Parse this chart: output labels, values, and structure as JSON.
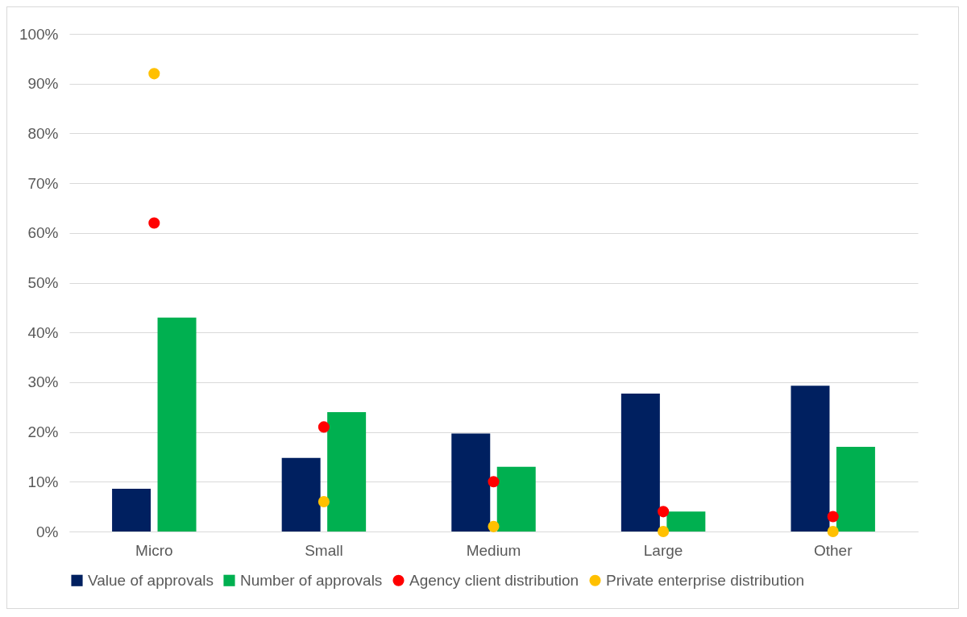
{
  "chart_data": {
    "type": "bar",
    "categories": [
      "Micro",
      "Small",
      "Medium",
      "Large",
      "Other"
    ],
    "series": [
      {
        "name": "Value of approvals",
        "color": "#002060",
        "values": [
          8.6,
          14.8,
          19.7,
          27.7,
          29.3
        ]
      },
      {
        "name": "Number of approvals",
        "color": "#00b050",
        "values": [
          43,
          24,
          13,
          4,
          17
        ]
      },
      {
        "name": "Agency client distribution",
        "color": "#ff0000",
        "type": "scatter",
        "values": [
          62,
          21,
          10,
          4,
          3
        ]
      },
      {
        "name": "Private enterprise distribution",
        "color": "#ffc000",
        "type": "scatter",
        "values": [
          92,
          6,
          1,
          0,
          0
        ]
      }
    ],
    "ylim": [
      0,
      100
    ],
    "yticks": [
      {
        "value": 0,
        "label": "0%"
      },
      {
        "value": 10,
        "label": "10%"
      },
      {
        "value": 20,
        "label": "20%"
      },
      {
        "value": 30,
        "label": "30%"
      },
      {
        "value": 40,
        "label": "40%"
      },
      {
        "value": 50,
        "label": "50%"
      },
      {
        "value": 60,
        "label": "60%"
      },
      {
        "value": 70,
        "label": "70%"
      },
      {
        "value": 80,
        "label": "80%"
      },
      {
        "value": 90,
        "label": "90%"
      },
      {
        "value": 100,
        "label": "100%"
      }
    ],
    "grid": "y",
    "legend": "bottom",
    "marker": "circle"
  }
}
